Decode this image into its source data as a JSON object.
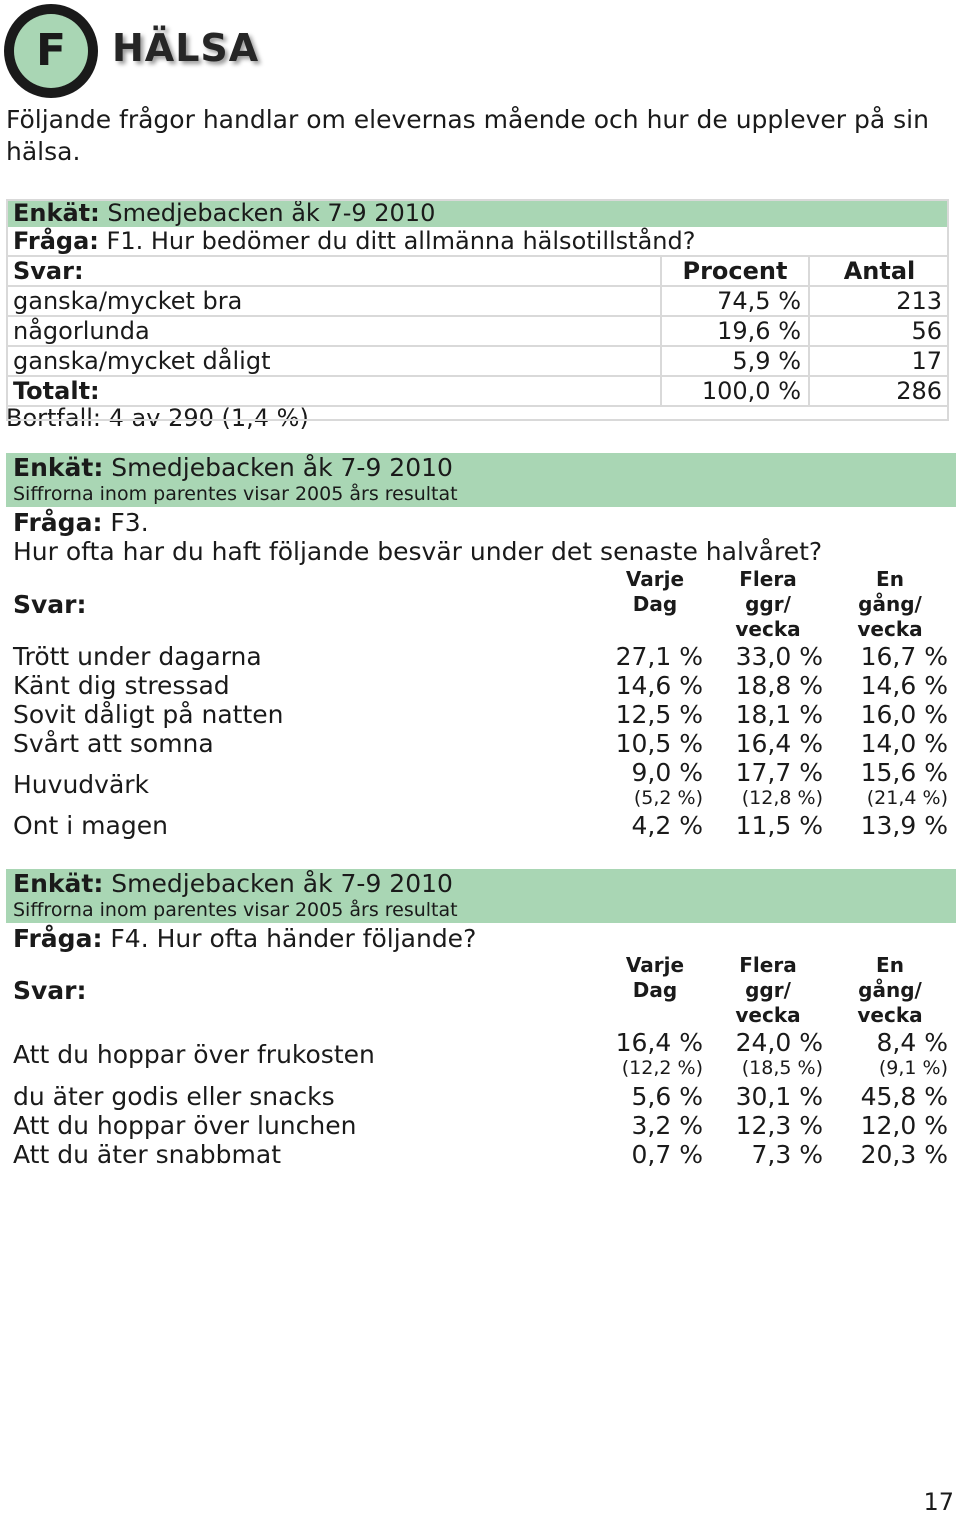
{
  "header": {
    "badge_letter": "F",
    "title": "HÄLSA"
  },
  "intro": "Följande frågor handlar om elevernas mående och hur de upplever på sin hälsa.",
  "f1": {
    "enkat_label": "Enkät:",
    "enkat_value": "Smedjebacken åk 7-9 2010",
    "fraga_label": "Fråga:",
    "fraga_value": "F1. Hur bedömer du ditt allmänna hälsotillstånd?",
    "svar_label": "Svar:",
    "col_procent": "Procent",
    "col_antal": "Antal",
    "rows": [
      {
        "label": "ganska/mycket bra",
        "procent": "74,5 %",
        "antal": "213"
      },
      {
        "label": "någorlunda",
        "procent": "19,6 %",
        "antal": "56"
      },
      {
        "label": "ganska/mycket dåligt",
        "procent": "5,9 %",
        "antal": "17"
      }
    ],
    "total_label": "Totalt:",
    "total_procent": "100,0 %",
    "total_antal": "286",
    "bortfall": "Bortfall: 4 av 290 (1,4 %)"
  },
  "f3": {
    "enkat_label": "Enkät:",
    "enkat_value": "Smedjebacken åk 7-9 2010",
    "note": "Siffrorna inom parentes visar 2005 års resultat",
    "fraga_label": "Fråga:",
    "fraga_value": "F3.",
    "question": "Hur ofta har du haft följande besvär under det senaste halvåret?",
    "svar_label": "Svar:",
    "col1": [
      "Varje",
      "Dag"
    ],
    "col2": [
      "Flera",
      "ggr/",
      "vecka"
    ],
    "col3": [
      "En",
      "gång/",
      "vecka"
    ],
    "rows": [
      {
        "label": "Trött under dagarna",
        "v1": "27,1 %",
        "v2": "33,0 %",
        "v3": "16,7 %"
      },
      {
        "label": "Känt dig stressad",
        "v1": "14,6 %",
        "v2": "18,8 %",
        "v3": "14,6 %"
      },
      {
        "label": "Sovit dåligt på natten",
        "v1": "12,5 %",
        "v2": "18,1 %",
        "v3": "16,0 %"
      },
      {
        "label": "Svårt att somna",
        "v1": "10,5 %",
        "v2": "16,4 %",
        "v3": "14,0 %"
      },
      {
        "label": "Huvudvärk",
        "v1": "9,0 %",
        "v2": "17,7 %",
        "v3": "15,6 %",
        "p1": "(5,2 %)",
        "p2": "(12,8 %)",
        "p3": "(21,4 %)"
      },
      {
        "label": "Ont i magen",
        "v1": "4,2 %",
        "v2": "11,5 %",
        "v3": "13,9 %"
      }
    ]
  },
  "f4": {
    "enkat_label": "Enkät:",
    "enkat_value": "Smedjebacken åk 7-9 2010",
    "note": "Siffrorna inom parentes visar 2005 års resultat",
    "fraga_label": "Fråga:",
    "fraga_value": "F4. Hur ofta händer följande?",
    "svar_label": "Svar:",
    "col1": [
      "Varje",
      "Dag"
    ],
    "col2": [
      "Flera",
      "ggr/",
      "vecka"
    ],
    "col3": [
      "En",
      "gång/",
      "vecka"
    ],
    "rows": [
      {
        "label": "Att du hoppar över frukosten",
        "v1": "16,4 %",
        "v2": "24,0 %",
        "v3": "8,4 %",
        "p1": "(12,2 %)",
        "p2": "(18,5 %)",
        "p3": "(9,1 %)"
      },
      {
        "label": "du äter godis eller snacks",
        "v1": "5,6 %",
        "v2": "30,1 %",
        "v3": "45,8 %"
      },
      {
        "label": "Att du hoppar över lunchen",
        "v1": "3,2 %",
        "v2": "12,3 %",
        "v3": "12,0 %"
      },
      {
        "label": "Att du äter snabbmat",
        "v1": "0,7 %",
        "v2": "7,3 %",
        "v3": "20,3 %"
      }
    ]
  },
  "page_number": "17",
  "colors": {
    "accent_green": "#a9d6b4",
    "grid_gray": "#d9d9d9"
  }
}
